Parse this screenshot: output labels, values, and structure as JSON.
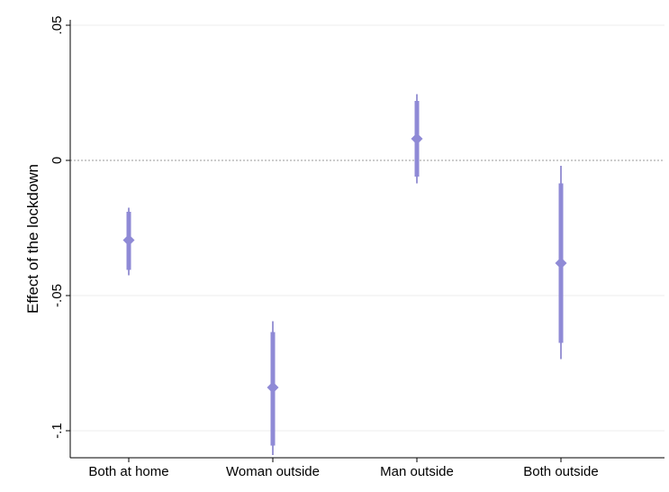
{
  "chart_data": {
    "type": "coefficient-plot",
    "ylabel": "Effect of the lockdown",
    "ylim": [
      -0.11,
      0.052
    ],
    "yticks": [
      {
        "value": 0.05,
        "label": ".05"
      },
      {
        "value": 0,
        "label": "0"
      },
      {
        "value": -0.05,
        "label": "-.05"
      },
      {
        "value": -0.1,
        "label": "-.1"
      }
    ],
    "reference_line": 0,
    "categories": [
      "Both at home",
      "Woman outside",
      "Man outside",
      "Both outside"
    ],
    "estimates": [
      -0.0295,
      -0.084,
      0.008,
      -0.038
    ],
    "ci_outer": [
      [
        -0.0425,
        -0.0175
      ],
      [
        -0.109,
        -0.0595
      ],
      [
        -0.0085,
        0.0245
      ],
      [
        -0.0735,
        -0.002
      ]
    ],
    "ci_inner": [
      [
        -0.0405,
        -0.019
      ],
      [
        -0.1055,
        -0.0635
      ],
      [
        -0.006,
        0.022
      ],
      [
        -0.0675,
        -0.0085
      ]
    ],
    "color": "#8f8ad6",
    "grid": true
  }
}
